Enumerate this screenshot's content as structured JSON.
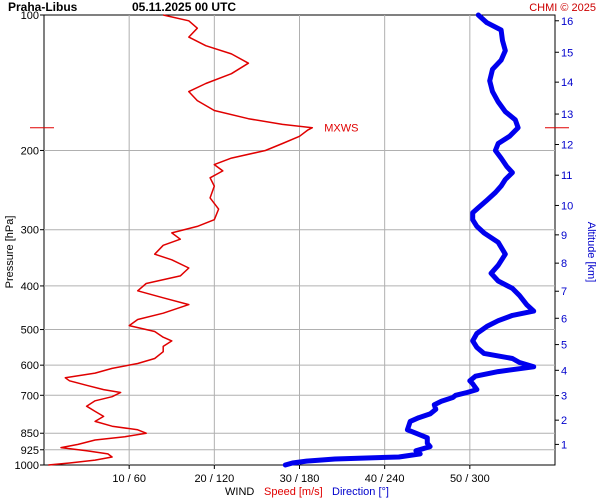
{
  "chart_data": {
    "type": "line",
    "station": "Praha-Libus",
    "datetime": "05.11.2025 00 UTC",
    "copyright": "CHMI © 2025",
    "ylabel_left": "Pressure [hPa]",
    "ylabel_right": "Altitude [km]",
    "xlabel_title": "WIND",
    "xlabel_speed": "Speed [m/s]",
    "xlabel_direction": "Direction [°]",
    "y_scale": "log",
    "ylim": [
      1000,
      100
    ],
    "pressure_ticks": [
      "100",
      "200",
      "300",
      "400",
      "500",
      "600",
      "700",
      "850",
      "925",
      "1000"
    ],
    "altitude_ticks": [
      "1",
      "2",
      "3",
      "4",
      "5",
      "6",
      "7",
      "8",
      "9",
      "10",
      "11",
      "12",
      "13",
      "14",
      "15",
      "16"
    ],
    "x_ticks": [
      "10 / 60",
      "20 / 120",
      "30 / 180",
      "40 / 240",
      "50 / 300"
    ],
    "speed_xlim": [
      0,
      60
    ],
    "direction_xlim": [
      0,
      360
    ],
    "grid": true,
    "mxws_label": "MXWS",
    "mxws_pressure": 178,
    "colors": {
      "speed": "#e00000",
      "direction": "#0000ee",
      "grid": "#b0b0b0",
      "copyright": "#cc0000"
    },
    "series": [
      {
        "name": "Speed [m/s]",
        "points": [
          [
            1000,
            0.5
          ],
          [
            990,
            3
          ],
          [
            975,
            6
          ],
          [
            960,
            8
          ],
          [
            945,
            7.5
          ],
          [
            930,
            5
          ],
          [
            915,
            2
          ],
          [
            900,
            4
          ],
          [
            880,
            6
          ],
          [
            865,
            9.5
          ],
          [
            850,
            12
          ],
          [
            835,
            11
          ],
          [
            820,
            8
          ],
          [
            800,
            6
          ],
          [
            780,
            7
          ],
          [
            760,
            6
          ],
          [
            740,
            5
          ],
          [
            720,
            6
          ],
          [
            705,
            8
          ],
          [
            690,
            9
          ],
          [
            680,
            7
          ],
          [
            665,
            5
          ],
          [
            650,
            3
          ],
          [
            640,
            2.5
          ],
          [
            625,
            6
          ],
          [
            610,
            8
          ],
          [
            595,
            11
          ],
          [
            580,
            13
          ],
          [
            560,
            14
          ],
          [
            545,
            14
          ],
          [
            530,
            15
          ],
          [
            520,
            14
          ],
          [
            505,
            13
          ],
          [
            490,
            10
          ],
          [
            475,
            11
          ],
          [
            460,
            14
          ],
          [
            440,
            17
          ],
          [
            425,
            14
          ],
          [
            410,
            11
          ],
          [
            395,
            12
          ],
          [
            380,
            16
          ],
          [
            365,
            17
          ],
          [
            350,
            15
          ],
          [
            340,
            13
          ],
          [
            325,
            14
          ],
          [
            315,
            16
          ],
          [
            305,
            15
          ],
          [
            295,
            18
          ],
          [
            285,
            20
          ],
          [
            270,
            20.5
          ],
          [
            255,
            19.5
          ],
          [
            240,
            20
          ],
          [
            230,
            19.5
          ],
          [
            222,
            21
          ],
          [
            215,
            20
          ],
          [
            208,
            22
          ],
          [
            200,
            26
          ],
          [
            193,
            28
          ],
          [
            186,
            30
          ],
          [
            180,
            31
          ],
          [
            178,
            31.5
          ],
          [
            175,
            28
          ],
          [
            170,
            24
          ],
          [
            163,
            20
          ],
          [
            155,
            18
          ],
          [
            148,
            17
          ],
          [
            142,
            19
          ],
          [
            135,
            22
          ],
          [
            128,
            24
          ],
          [
            122,
            22
          ],
          [
            117,
            19
          ],
          [
            112,
            17
          ],
          [
            107,
            18
          ],
          [
            103,
            17
          ],
          [
            100,
            14
          ]
        ]
      },
      {
        "name": "Direction [°]",
        "points": [
          [
            1000,
            170
          ],
          [
            990,
            175
          ],
          [
            980,
            185
          ],
          [
            970,
            205
          ],
          [
            960,
            250
          ],
          [
            945,
            265
          ],
          [
            930,
            262
          ],
          [
            910,
            272
          ],
          [
            895,
            270
          ],
          [
            870,
            270
          ],
          [
            850,
            262
          ],
          [
            835,
            256
          ],
          [
            818,
            257
          ],
          [
            800,
            258
          ],
          [
            785,
            264
          ],
          [
            770,
            272
          ],
          [
            752,
            276
          ],
          [
            735,
            275
          ],
          [
            722,
            280
          ],
          [
            708,
            288
          ],
          [
            700,
            290
          ],
          [
            690,
            298
          ],
          [
            680,
            305
          ],
          [
            660,
            302
          ],
          [
            650,
            300
          ],
          [
            635,
            304
          ],
          [
            620,
            320
          ],
          [
            605,
            345
          ],
          [
            592,
            335
          ],
          [
            580,
            330
          ],
          [
            565,
            310
          ],
          [
            548,
            305
          ],
          [
            530,
            302
          ],
          [
            510,
            305
          ],
          [
            492,
            312
          ],
          [
            478,
            320
          ],
          [
            465,
            330
          ],
          [
            455,
            345
          ],
          [
            440,
            340
          ],
          [
            420,
            335
          ],
          [
            405,
            330
          ],
          [
            390,
            320
          ],
          [
            375,
            315
          ],
          [
            360,
            320
          ],
          [
            340,
            325
          ],
          [
            320,
            320
          ],
          [
            305,
            310
          ],
          [
            295,
            305
          ],
          [
            285,
            302
          ],
          [
            275,
            302
          ],
          [
            268,
            306
          ],
          [
            258,
            312
          ],
          [
            248,
            318
          ],
          [
            240,
            322
          ],
          [
            232,
            325
          ],
          [
            224,
            330
          ],
          [
            217,
            326
          ],
          [
            208,
            322
          ],
          [
            200,
            318
          ],
          [
            193,
            320
          ],
          [
            186,
            328
          ],
          [
            178,
            334
          ],
          [
            171,
            332
          ],
          [
            164,
            325
          ],
          [
            156,
            320
          ],
          [
            148,
            316
          ],
          [
            140,
            314
          ],
          [
            132,
            316
          ],
          [
            126,
            322
          ],
          [
            120,
            325
          ],
          [
            114,
            323
          ],
          [
            108,
            322
          ],
          [
            104,
            312
          ],
          [
            100,
            306
          ]
        ]
      }
    ]
  }
}
